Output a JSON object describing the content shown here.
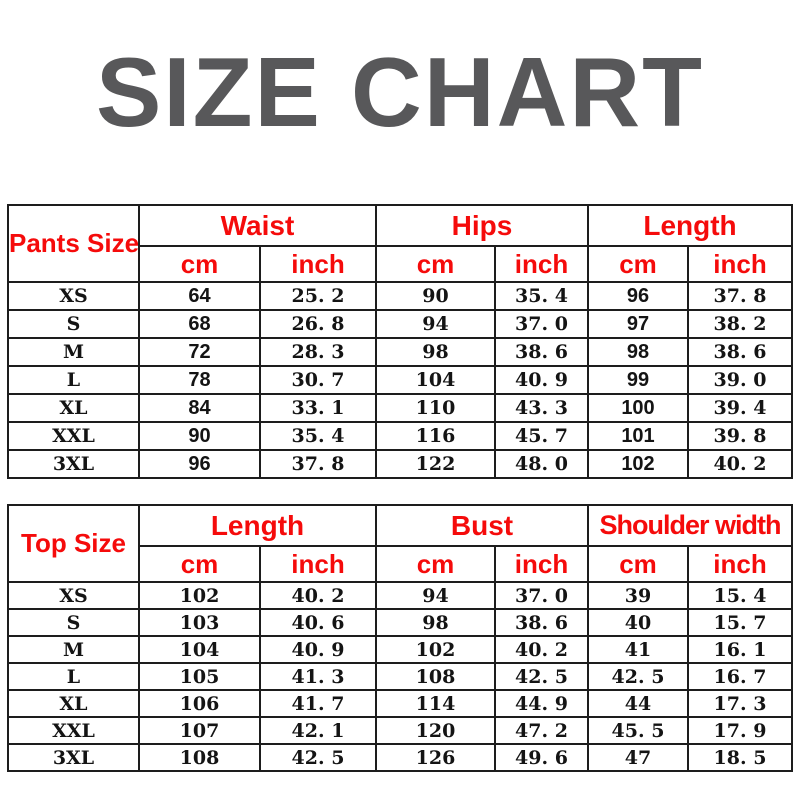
{
  "title": "SIZE CHART",
  "colors": {
    "header_red": "#f50b0b",
    "title_gray": "#58585a",
    "border_black": "#1d1d1d",
    "data_black": "#141414",
    "background": "#ffffff"
  },
  "chart_data": [
    {
      "type": "table",
      "title": "Pants Size",
      "row_header_label": "Pants Size",
      "column_groups": [
        "Waist",
        "Hips",
        "Length"
      ],
      "unit_headers": [
        "cm",
        "inch",
        "cm",
        "inch",
        "cm",
        "inch"
      ],
      "sizes": [
        "XS",
        "S",
        "M",
        "L",
        "XL",
        "XXL",
        "3XL"
      ],
      "rows": [
        [
          "64",
          "25.2",
          "90",
          "35.4",
          "96",
          "37.8"
        ],
        [
          "68",
          "26.8",
          "94",
          "37.0",
          "97",
          "38.2"
        ],
        [
          "72",
          "28.3",
          "98",
          "38.6",
          "98",
          "38.6"
        ],
        [
          "78",
          "30.7",
          "104",
          "40.9",
          "99",
          "39.0"
        ],
        [
          "84",
          "33.1",
          "110",
          "43.3",
          "100",
          "39.4"
        ],
        [
          "90",
          "35.4",
          "116",
          "45.7",
          "101",
          "39.8"
        ],
        [
          "96",
          "37.8",
          "122",
          "48.0",
          "102",
          "40.2"
        ]
      ]
    },
    {
      "type": "table",
      "title": "Top Size",
      "row_header_label": "Top Size",
      "column_groups": [
        "Length",
        "Bust",
        "Shoulder width"
      ],
      "unit_headers": [
        "cm",
        "inch",
        "cm",
        "inch",
        "cm",
        "inch"
      ],
      "sizes": [
        "XS",
        "S",
        "M",
        "L",
        "XL",
        "XXL",
        "3XL"
      ],
      "rows": [
        [
          "102",
          "40.2",
          "94",
          "37.0",
          "39",
          "15.4"
        ],
        [
          "103",
          "40.6",
          "98",
          "38.6",
          "40",
          "15.7"
        ],
        [
          "104",
          "40.9",
          "102",
          "40.2",
          "41",
          "16.1"
        ],
        [
          "105",
          "41.3",
          "108",
          "42.5",
          "42.5",
          "16.7"
        ],
        [
          "106",
          "41.7",
          "114",
          "44.9",
          "44",
          "17.3"
        ],
        [
          "107",
          "42.1",
          "120",
          "47.2",
          "45.5",
          "17.9"
        ],
        [
          "108",
          "42.5",
          "126",
          "49.6",
          "47",
          "18.5"
        ]
      ]
    }
  ]
}
